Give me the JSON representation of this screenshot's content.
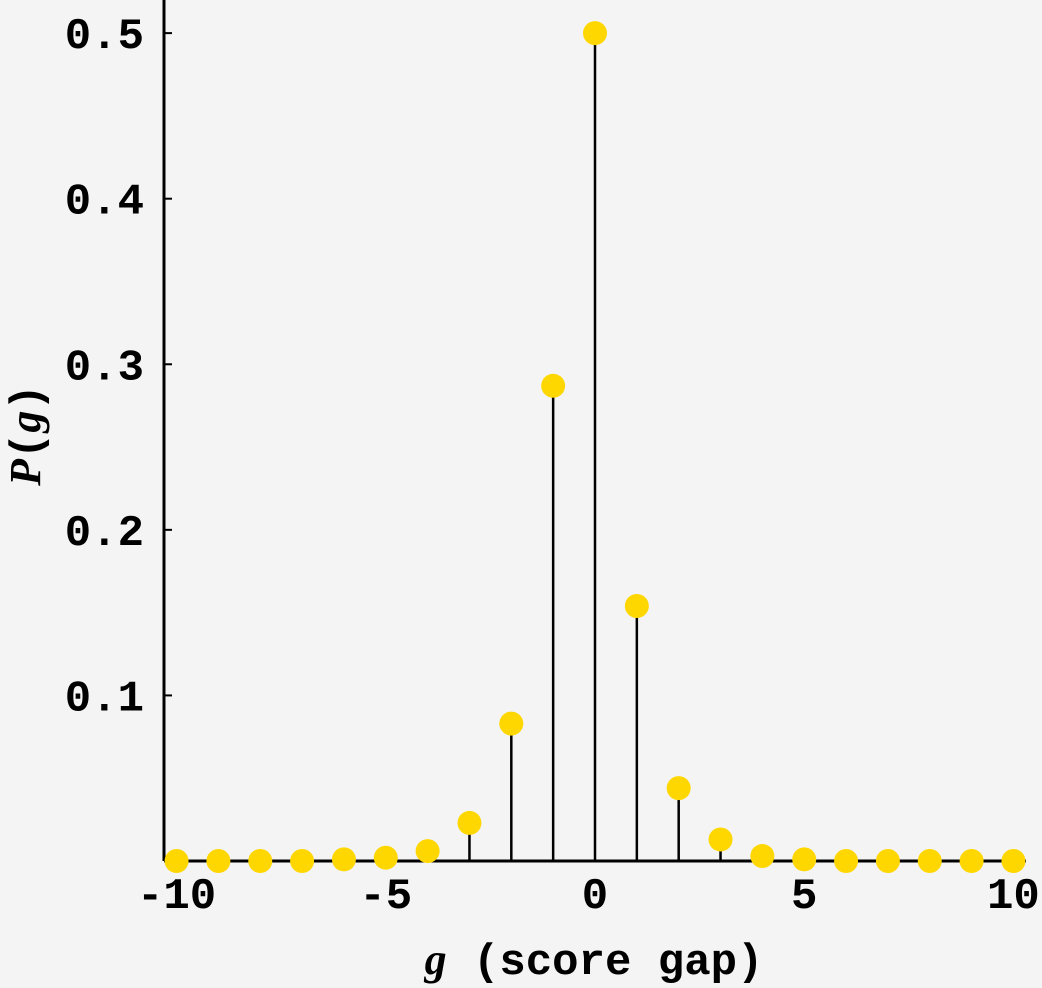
{
  "chart_data": {
    "type": "scatter",
    "style": "stem",
    "title": "",
    "xlabel": "g (score gap)",
    "xlabel_var": "g",
    "xlabel_rest": " (score gap)",
    "ylabel": "P(g)",
    "ylabel_var": "P",
    "ylabel_open": "(",
    "ylabel_arg": "g",
    "ylabel_close": ")",
    "xlim": [
      -10.3,
      10.3
    ],
    "ylim": [
      0,
      0.52
    ],
    "x_ticks": [
      -10,
      -5,
      0,
      5,
      10
    ],
    "x_tick_labels": [
      "-10",
      "-5",
      "0",
      "5",
      "10"
    ],
    "y_ticks": [
      0.1,
      0.2,
      0.3,
      0.4,
      0.5
    ],
    "y_tick_labels": [
      "0.1",
      "0.2",
      "0.3",
      "0.4",
      "0.5"
    ],
    "grid": false,
    "marker_color": "#ffd700",
    "stem_color": "#000000",
    "x": [
      -10,
      -9,
      -8,
      -7,
      -6,
      -5,
      -4,
      -3,
      -2,
      -1,
      0,
      1,
      2,
      3,
      4,
      5,
      6,
      7,
      8,
      9,
      10
    ],
    "values": [
      0.0,
      0.0,
      0.0,
      0.0,
      0.001,
      0.002,
      0.006,
      0.023,
      0.083,
      0.287,
      0.5,
      0.154,
      0.044,
      0.013,
      0.003,
      0.001,
      0.0,
      0.0,
      0.0,
      0.0,
      0.0
    ]
  }
}
